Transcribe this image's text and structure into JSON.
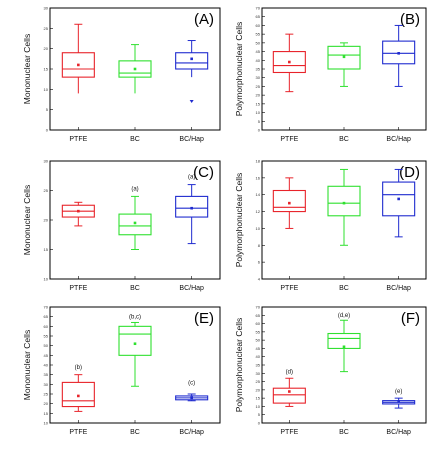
{
  "colors": {
    "PTFE": "#e8232a",
    "BC": "#2fe02f",
    "BC/Hap": "#1f2bcf"
  },
  "chart_data": [
    {
      "panel": "(A)",
      "type": "box",
      "ylabel": "Mononuclear Cells",
      "categories": [
        "PTFE",
        "BC",
        "BC/Hap"
      ],
      "ylim": [
        0,
        30
      ],
      "yticks": [
        0,
        5,
        10,
        15,
        20,
        25,
        30
      ],
      "series": [
        {
          "category": "PTFE",
          "whisker_low": 9,
          "q1": 13,
          "median": 15,
          "q3": 19,
          "whisker_high": 26,
          "mean": 16,
          "cap_high": true,
          "cap_low": false,
          "outliers": []
        },
        {
          "category": "BC",
          "whisker_low": 9,
          "q1": 13,
          "median": 14,
          "q3": 17,
          "whisker_high": 21,
          "mean": 15,
          "cap_high": true,
          "cap_low": false,
          "outliers": []
        },
        {
          "category": "BC/Hap",
          "whisker_low": 13,
          "q1": 15,
          "median": 16.5,
          "q3": 19,
          "whisker_high": 22,
          "mean": 17.5,
          "cap_high": true,
          "cap_low": false,
          "outliers": [
            7
          ]
        }
      ],
      "annotations": []
    },
    {
      "panel": "(B)",
      "type": "box",
      "ylabel": "Polymorphonuclear Cells",
      "categories": [
        "PTFE",
        "BC",
        "BC/Hap"
      ],
      "ylim": [
        0,
        70
      ],
      "yticks": [
        0,
        5,
        10,
        15,
        20,
        25,
        30,
        35,
        40,
        45,
        50,
        55,
        60,
        65,
        70
      ],
      "series": [
        {
          "category": "PTFE",
          "whisker_low": 22,
          "q1": 33,
          "median": 37,
          "q3": 45,
          "whisker_high": 55,
          "mean": 39,
          "cap_high": true,
          "cap_low": true,
          "outliers": []
        },
        {
          "category": "BC",
          "whisker_low": 25,
          "q1": 35,
          "median": 43,
          "q3": 48,
          "whisker_high": 50,
          "mean": 42,
          "cap_high": true,
          "cap_low": true,
          "outliers": []
        },
        {
          "category": "BC/Hap",
          "whisker_low": 25,
          "q1": 38,
          "median": 44,
          "q3": 51,
          "whisker_high": 60,
          "mean": 44,
          "cap_high": true,
          "cap_low": true,
          "outliers": []
        }
      ],
      "annotations": []
    },
    {
      "panel": "(C)",
      "type": "box",
      "ylabel": "Mononuclear Cells",
      "categories": [
        "PTFE",
        "BC",
        "BC/Hap"
      ],
      "ylim": [
        10,
        30
      ],
      "yticks": [
        10,
        15,
        20,
        25,
        30
      ],
      "series": [
        {
          "category": "PTFE",
          "whisker_low": 19,
          "q1": 20.5,
          "median": 21.5,
          "q3": 22.5,
          "whisker_high": 23,
          "mean": 21.5,
          "cap_high": true,
          "cap_low": true,
          "outliers": []
        },
        {
          "category": "BC",
          "whisker_low": 15,
          "q1": 17.5,
          "median": 19,
          "q3": 21,
          "whisker_high": 24,
          "mean": 19.5,
          "cap_high": true,
          "cap_low": true,
          "outliers": []
        },
        {
          "category": "BC/Hap",
          "whisker_low": 16,
          "q1": 20.5,
          "median": 22,
          "q3": 24,
          "whisker_high": 26,
          "mean": 22,
          "cap_high": true,
          "cap_low": true,
          "outliers": []
        }
      ],
      "annotations": [
        {
          "category": "BC",
          "text": "(a)",
          "y": 25
        },
        {
          "category": "BC/Hap",
          "text": "(a)",
          "y": 27
        }
      ]
    },
    {
      "panel": "(D)",
      "type": "box",
      "ylabel": "Polymorphonuclear Cells",
      "categories": [
        "PTFE",
        "BC",
        "BC/Hap"
      ],
      "ylim": [
        4,
        18
      ],
      "yticks": [
        4,
        6,
        8,
        10,
        12,
        14,
        16,
        18
      ],
      "series": [
        {
          "category": "PTFE",
          "whisker_low": 10,
          "q1": 12,
          "median": 12.5,
          "q3": 14.5,
          "whisker_high": 16,
          "mean": 13,
          "cap_high": true,
          "cap_low": true,
          "outliers": []
        },
        {
          "category": "BC",
          "whisker_low": 8,
          "q1": 11.5,
          "median": 13,
          "q3": 15,
          "whisker_high": 17,
          "mean": 13,
          "cap_high": true,
          "cap_low": true,
          "outliers": []
        },
        {
          "category": "BC/Hap",
          "whisker_low": 9,
          "q1": 11.5,
          "median": 14,
          "q3": 15.5,
          "whisker_high": 17,
          "mean": 13.5,
          "cap_high": true,
          "cap_low": true,
          "outliers": []
        }
      ],
      "annotations": []
    },
    {
      "panel": "(E)",
      "type": "box",
      "ylabel": "Mononuclear Cells",
      "categories": [
        "PTFE",
        "BC",
        "BC/Hap"
      ],
      "ylim": [
        10,
        70
      ],
      "yticks": [
        10,
        15,
        20,
        25,
        30,
        35,
        40,
        45,
        50,
        55,
        60,
        65,
        70
      ],
      "series": [
        {
          "category": "PTFE",
          "whisker_low": 16,
          "q1": 18.5,
          "median": 21.5,
          "q3": 31,
          "whisker_high": 35,
          "mean": 24,
          "cap_high": true,
          "cap_low": true,
          "outliers": []
        },
        {
          "category": "BC",
          "whisker_low": 29,
          "q1": 45,
          "median": 56,
          "q3": 60,
          "whisker_high": 62,
          "mean": 51,
          "cap_high": true,
          "cap_low": true,
          "outliers": []
        },
        {
          "category": "BC/Hap",
          "whisker_low": 21.5,
          "q1": 22,
          "median": 23,
          "q3": 24,
          "whisker_high": 25,
          "mean": 23,
          "cap_high": true,
          "cap_low": true,
          "outliers": []
        }
      ],
      "annotations": [
        {
          "category": "PTFE",
          "text": "(b)",
          "y": 38
        },
        {
          "category": "BC",
          "text": "(b,c)",
          "y": 64
        },
        {
          "category": "BC/Hap",
          "text": "(c)",
          "y": 30
        }
      ]
    },
    {
      "panel": "(F)",
      "type": "box",
      "ylabel": "Polymorphonuclear Cells",
      "categories": [
        "PTFE",
        "BC",
        "BC/Hap"
      ],
      "ylim": [
        0,
        70
      ],
      "yticks": [
        0,
        5,
        10,
        15,
        20,
        25,
        30,
        35,
        40,
        45,
        50,
        55,
        60,
        65,
        70
      ],
      "series": [
        {
          "category": "PTFE",
          "whisker_low": 10,
          "q1": 12,
          "median": 17,
          "q3": 21,
          "whisker_high": 27,
          "mean": 19,
          "cap_high": true,
          "cap_low": true,
          "outliers": []
        },
        {
          "category": "BC",
          "whisker_low": 31,
          "q1": 45,
          "median": 51,
          "q3": 54,
          "whisker_high": 62,
          "mean": 46,
          "cap_high": true,
          "cap_low": true,
          "outliers": []
        },
        {
          "category": "BC/Hap",
          "whisker_low": 9,
          "q1": 11.5,
          "median": 12.5,
          "q3": 13.5,
          "whisker_high": 15,
          "mean": 13,
          "cap_high": true,
          "cap_low": true,
          "outliers": []
        }
      ],
      "annotations": [
        {
          "category": "PTFE",
          "text": "(d)",
          "y": 30
        },
        {
          "category": "BC",
          "text": "(d,e)",
          "y": 64
        },
        {
          "category": "BC/Hap",
          "text": "(e)",
          "y": 18
        }
      ]
    }
  ]
}
